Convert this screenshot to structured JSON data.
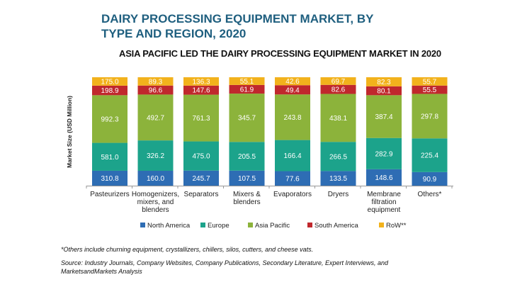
{
  "chart_data": {
    "type": "bar",
    "stacked": "100%",
    "title": "DAIRY PROCESSING EQUIPMENT MARKET, BY TYPE AND REGION, 2020",
    "subtitle": "ASIA PACIFIC LED THE DAIRY PROCESSING EQUIPMENT MARKET IN 2020",
    "ylabel": "Market Size (USD Million)",
    "xlabel": "",
    "categories": [
      "Pasteurizers",
      "Homogenizers, mixers, and blenders",
      "Separators",
      "Mixers & blenders",
      "Evaporators",
      "Dryers",
      "Membrane filtration equipment",
      "Others*"
    ],
    "category_lines": [
      [
        "Pasteurizers"
      ],
      [
        "Homogenizers,",
        "mixers, and",
        "blenders"
      ],
      [
        "Separators"
      ],
      [
        "Mixers &",
        "blenders"
      ],
      [
        "Evaporators"
      ],
      [
        "Dryers"
      ],
      [
        "Membrane",
        "filtration",
        "equipment"
      ],
      [
        "Others*"
      ]
    ],
    "series": [
      {
        "name": "North America",
        "color": "#2e6db4",
        "values": [
          310.8,
          160.0,
          245.7,
          107.5,
          77.6,
          133.5,
          148.6,
          90.9
        ]
      },
      {
        "name": "Europe",
        "color": "#1ca38b",
        "values": [
          581.0,
          326.2,
          475.0,
          205.5,
          166.4,
          266.5,
          282.9,
          225.4
        ]
      },
      {
        "name": "Asia Pacific",
        "color": "#8cb33b",
        "values": [
          992.3,
          492.7,
          761.3,
          345.7,
          243.8,
          438.1,
          387.4,
          297.8
        ]
      },
      {
        "name": "South America",
        "color": "#c0282d",
        "values": [
          198.9,
          96.6,
          147.6,
          61.9,
          49.4,
          82.6,
          80.1,
          55.5
        ]
      },
      {
        "name": "RoW**",
        "color": "#f2b21c",
        "values": [
          175.0,
          89.3,
          136.3,
          55.1,
          42.6,
          69.7,
          82.3,
          55.7
        ]
      }
    ],
    "legend_position": "bottom",
    "grid": false
  },
  "footnotes": {
    "others": "*Others include churning equipment, crystallizers, chillers, silos, cutters, and cheese vats.",
    "source_line1": "Source: Industry Journals, Company Websites, Company Publications, Secondary Literature, Expert Interviews, and",
    "source_line2": "MarketsandMarkets Analysis"
  }
}
